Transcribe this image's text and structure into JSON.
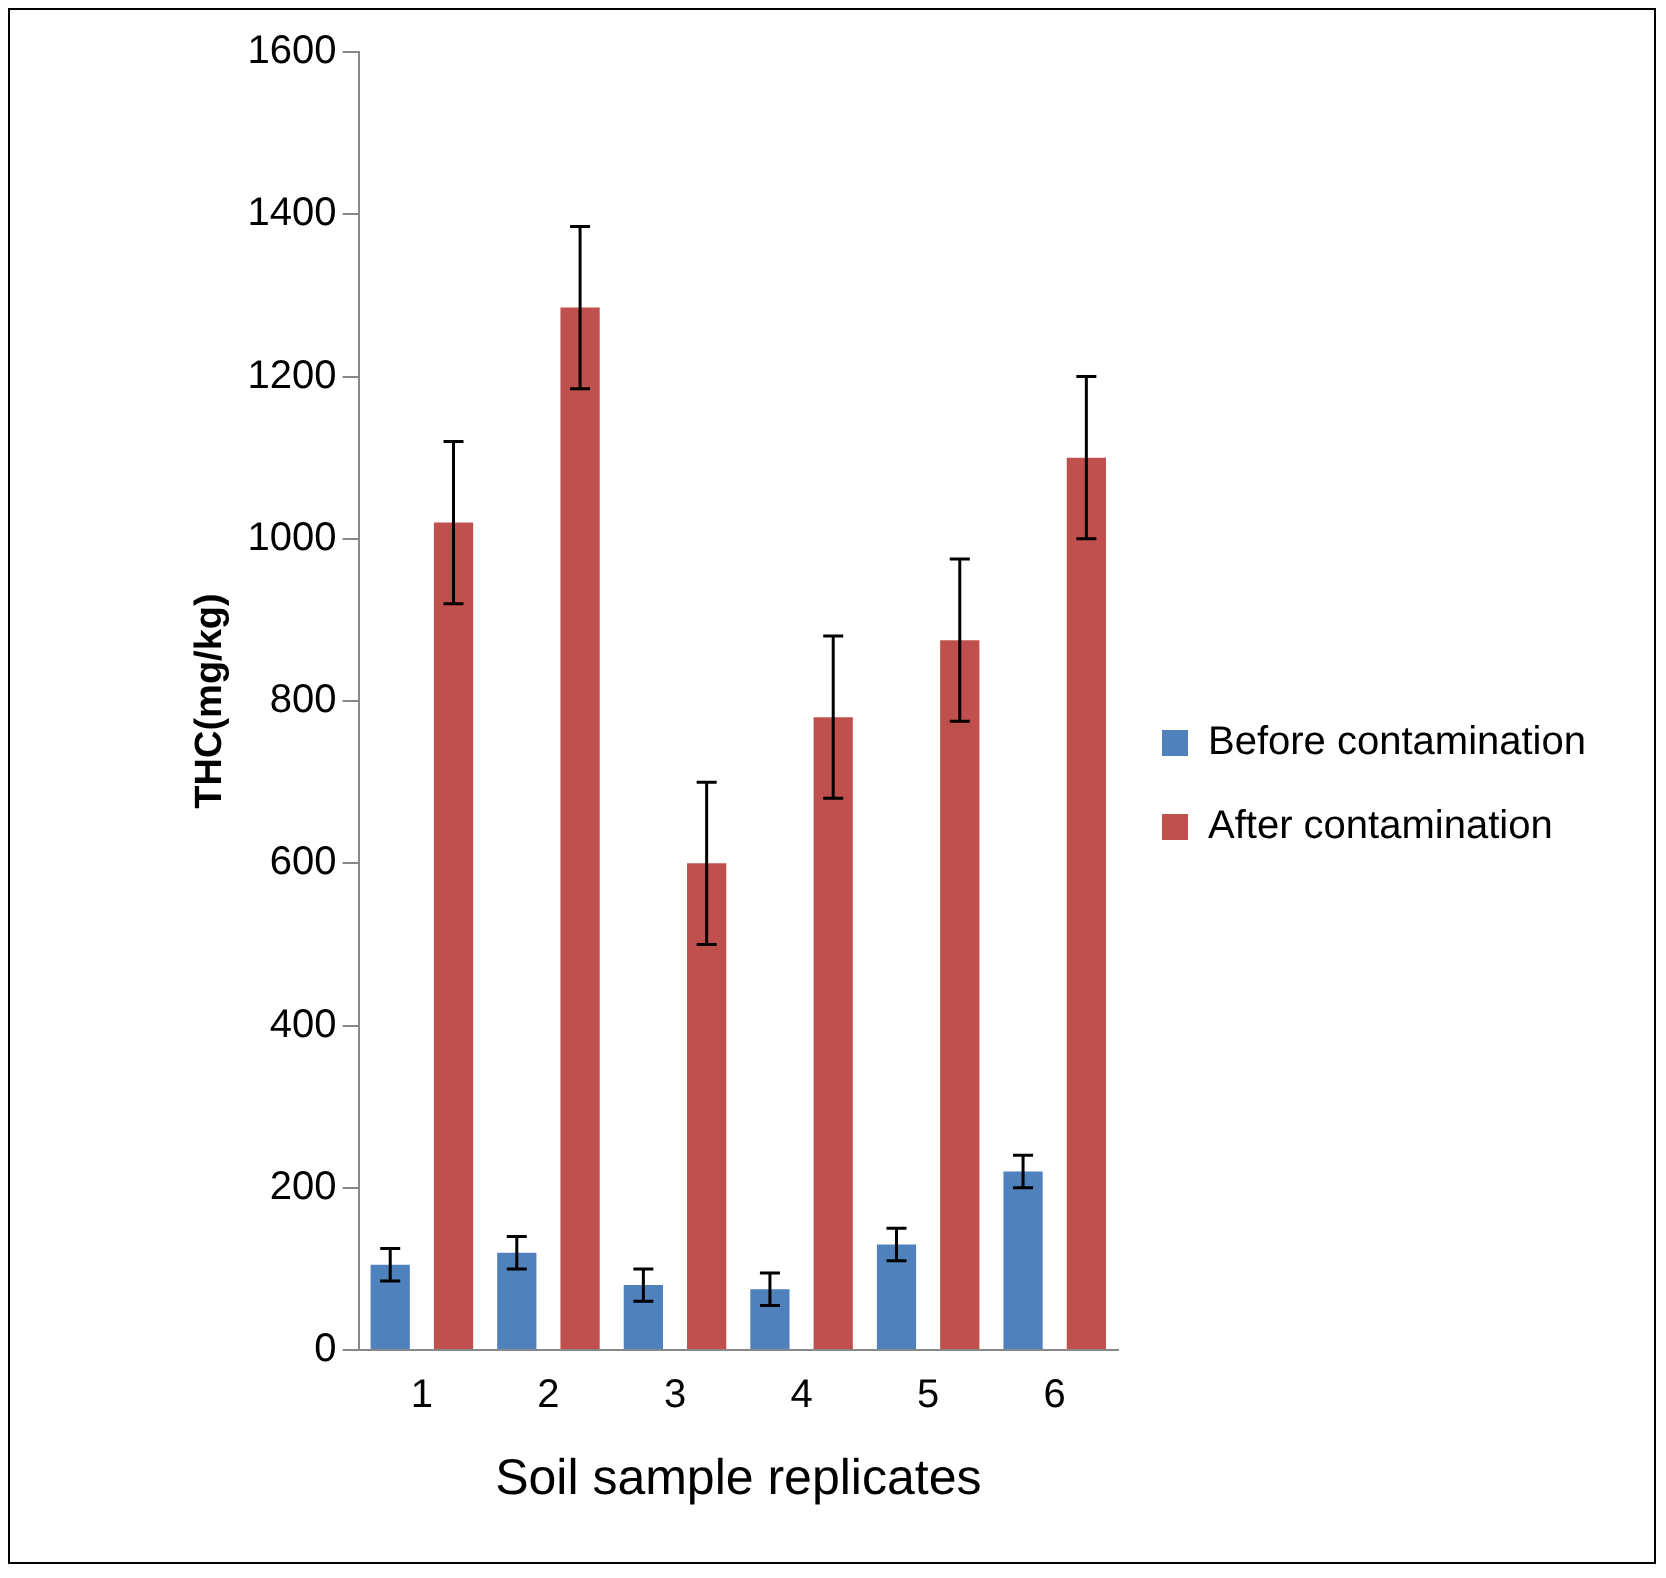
{
  "chart_data": {
    "type": "bar",
    "xlabel": "Soil sample replicates",
    "ylabel": "THC(mg/kg)",
    "categories": [
      "1",
      "2",
      "3",
      "4",
      "5",
      "6"
    ],
    "series": [
      {
        "name": "Before contamination",
        "color": "#4f81bd",
        "values": [
          105,
          120,
          80,
          75,
          130,
          220
        ],
        "errors": [
          20,
          20,
          20,
          20,
          20,
          20
        ]
      },
      {
        "name": "After contamination",
        "color": "#c0504d",
        "values": [
          1020,
          1285,
          600,
          780,
          875,
          1100
        ],
        "errors": [
          100,
          100,
          100,
          100,
          100,
          100
        ]
      }
    ],
    "ylim": [
      0,
      1600
    ],
    "yticks": [
      0,
      200,
      400,
      600,
      800,
      1000,
      1200,
      1400,
      1600
    ],
    "grid": false,
    "legend": "right"
  }
}
